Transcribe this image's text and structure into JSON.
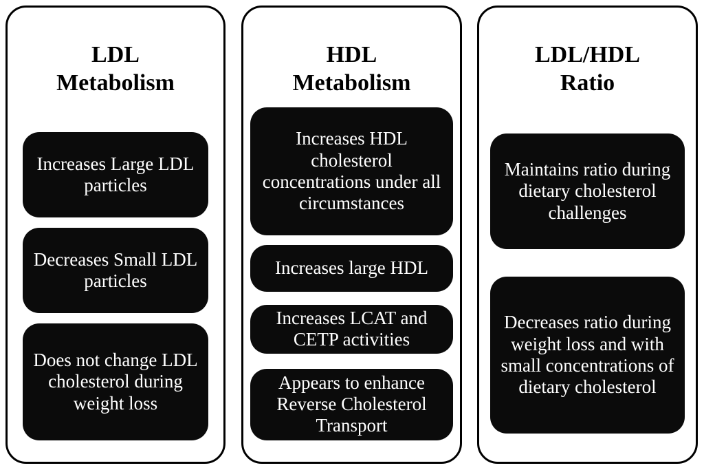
{
  "figure": {
    "columns": [
      {
        "title": "LDL\nMetabolism",
        "items": [
          "Increases Large LDL particles",
          "Decreases Small LDL particles",
          "Does not change LDL cholesterol during weight loss"
        ]
      },
      {
        "title": "HDL\nMetabolism",
        "items": [
          "Increases HDL cholesterol concentrations under all circumstances",
          "Increases large HDL",
          "Increases LCAT and CETP activities",
          "Appears to enhance Reverse Cholesterol Transport"
        ]
      },
      {
        "title": "LDL/HDL\nRatio",
        "items": [
          "Maintains ratio during dietary cholesterol challenges",
          "Decreases ratio during weight loss and with small concentrations of dietary cholesterol"
        ]
      }
    ]
  },
  "colors": {
    "page_bg": "#ffffff",
    "panel_bg": "#ffffff",
    "line_color": "#000000",
    "box_bg": "#0b0b0b",
    "box_text": "#ffffff"
  }
}
